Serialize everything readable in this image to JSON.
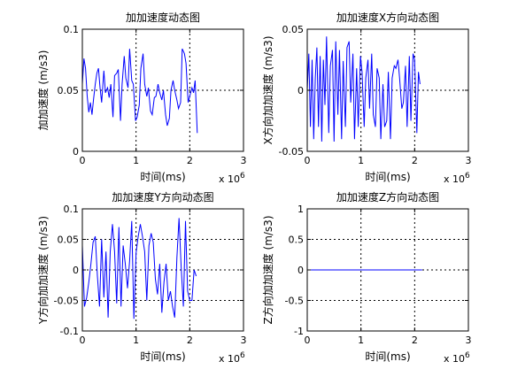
{
  "chart_data": [
    {
      "type": "line",
      "title": "加加速度动态图",
      "xlabel": "时间(ms)",
      "ylabel": "加加速度 (m/s3)",
      "x_multiplier": "x 10",
      "x_multiplier_exp": "6",
      "xlim": [
        0,
        3
      ],
      "ylim": [
        0,
        0.1
      ],
      "xticks": [
        0,
        1,
        2,
        3
      ],
      "xtick_labels": [
        "0",
        "1",
        "2",
        "3"
      ],
      "yticks": [
        0,
        0.05,
        0.1
      ],
      "ytick_labels": [
        "0",
        "0.05",
        "0.1"
      ],
      "grid": true,
      "color": "#0000ff",
      "x": [
        0,
        0.03,
        0.06,
        0.09,
        0.12,
        0.15,
        0.18,
        0.21,
        0.24,
        0.27,
        0.3,
        0.33,
        0.36,
        0.4,
        0.43,
        0.47,
        0.5,
        0.53,
        0.57,
        0.6,
        0.64,
        0.67,
        0.71,
        0.74,
        0.78,
        0.81,
        0.85,
        0.88,
        0.92,
        0.95,
        0.99,
        1.02,
        1.06,
        1.09,
        1.13,
        1.16,
        1.2,
        1.23,
        1.27,
        1.3,
        1.34,
        1.37,
        1.41,
        1.44,
        1.48,
        1.51,
        1.55,
        1.58,
        1.62,
        1.65,
        1.69,
        1.72,
        1.76,
        1.79,
        1.83,
        1.86,
        1.9,
        1.93,
        1.97,
        2.0,
        2.04,
        2.07,
        2.1,
        2.14
      ],
      "y": [
        0.055,
        0.076,
        0.068,
        0.045,
        0.032,
        0.04,
        0.03,
        0.043,
        0.055,
        0.064,
        0.068,
        0.052,
        0.04,
        0.066,
        0.048,
        0.052,
        0.044,
        0.055,
        0.028,
        0.062,
        0.064,
        0.067,
        0.025,
        0.055,
        0.078,
        0.06,
        0.052,
        0.084,
        0.058,
        0.055,
        0.025,
        0.028,
        0.038,
        0.068,
        0.08,
        0.055,
        0.045,
        0.052,
        0.033,
        0.03,
        0.044,
        0.045,
        0.055,
        0.048,
        0.042,
        0.05,
        0.03,
        0.021,
        0.027,
        0.05,
        0.058,
        0.05,
        0.042,
        0.035,
        0.04,
        0.084,
        0.08,
        0.072,
        0.04,
        0.045,
        0.052,
        0.048,
        0.058,
        0.015
      ]
    },
    {
      "type": "line",
      "title": "加加速度X方向动态图",
      "xlabel": "时间(ms)",
      "ylabel": "X方向加加速度 (m/s3)",
      "x_multiplier": "x 10",
      "x_multiplier_exp": "6",
      "xlim": [
        0,
        3
      ],
      "ylim": [
        -0.05,
        0.05
      ],
      "xticks": [
        0,
        1,
        2,
        3
      ],
      "xtick_labels": [
        "0",
        "1",
        "2",
        "3"
      ],
      "yticks": [
        -0.05,
        0,
        0.05
      ],
      "ytick_labels": [
        "-0.05",
        "0",
        "0.05"
      ],
      "grid": true,
      "color": "#0000ff",
      "x": [
        0,
        0.03,
        0.06,
        0.09,
        0.12,
        0.15,
        0.18,
        0.21,
        0.24,
        0.27,
        0.3,
        0.33,
        0.36,
        0.4,
        0.43,
        0.47,
        0.5,
        0.53,
        0.57,
        0.6,
        0.64,
        0.67,
        0.71,
        0.74,
        0.78,
        0.81,
        0.85,
        0.88,
        0.92,
        0.95,
        0.99,
        1.02,
        1.06,
        1.09,
        1.13,
        1.16,
        1.2,
        1.23,
        1.27,
        1.3,
        1.34,
        1.37,
        1.41,
        1.44,
        1.48,
        1.51,
        1.55,
        1.58,
        1.62,
        1.65,
        1.69,
        1.72,
        1.76,
        1.79,
        1.83,
        1.86,
        1.9,
        1.93,
        1.97,
        2.0,
        2.04,
        2.07,
        2.1
      ],
      "y": [
        0.0,
        0.03,
        -0.03,
        0.025,
        -0.04,
        0.01,
        0.035,
        -0.03,
        0.028,
        -0.042,
        0.025,
        -0.012,
        0.044,
        -0.035,
        0.02,
        0.033,
        -0.042,
        0.04,
        -0.02,
        0.033,
        -0.04,
        0.024,
        -0.03,
        0.035,
        0.04,
        -0.01,
        0.03,
        -0.04,
        0.018,
        -0.03,
        0.028,
        0.015,
        -0.03,
        0.01,
        0.025,
        -0.015,
        0.03,
        -0.02,
        -0.03,
        0.018,
        0.01,
        -0.04,
        0.005,
        -0.03,
        -0.025,
        0.015,
        -0.04,
        0.01,
        0.02,
        0.018,
        0.025,
        0.01,
        -0.015,
        -0.01,
        0.02,
        -0.03,
        0.028,
        -0.025,
        0.03,
        0.025,
        -0.035,
        0.015,
        0.005
      ]
    },
    {
      "type": "line",
      "title": "加加速度Y方向动态图",
      "xlabel": "时间(ms)",
      "ylabel": "Y方向加加速度 (m/s3)",
      "x_multiplier": "x 10",
      "x_multiplier_exp": "6",
      "xlim": [
        0,
        3
      ],
      "ylim": [
        -0.1,
        0.1
      ],
      "xticks": [
        0,
        1,
        2,
        3
      ],
      "xtick_labels": [
        "0",
        "1",
        "2",
        "3"
      ],
      "yticks": [
        -0.1,
        -0.05,
        0,
        0.05,
        0.1
      ],
      "ytick_labels": [
        "-0.1",
        "-0.05",
        "0",
        "0.05",
        "0.1"
      ],
      "grid": true,
      "color": "#0000ff",
      "x": [
        0,
        0.04,
        0.08,
        0.12,
        0.16,
        0.2,
        0.24,
        0.28,
        0.32,
        0.36,
        0.4,
        0.44,
        0.48,
        0.52,
        0.56,
        0.6,
        0.64,
        0.68,
        0.72,
        0.76,
        0.8,
        0.84,
        0.88,
        0.92,
        0.96,
        1.0,
        1.04,
        1.08,
        1.12,
        1.16,
        1.2,
        1.24,
        1.28,
        1.32,
        1.36,
        1.4,
        1.44,
        1.48,
        1.52,
        1.56,
        1.6,
        1.64,
        1.68,
        1.72,
        1.76,
        1.8,
        1.84,
        1.88,
        1.92,
        1.96,
        2.0,
        2.04,
        2.08,
        2.12
      ],
      "y": [
        0.04,
        -0.06,
        -0.045,
        -0.02,
        0.01,
        0.045,
        0.055,
        -0.01,
        -0.06,
        0.05,
        -0.045,
        0.03,
        -0.078,
        0.03,
        0.075,
        0.03,
        -0.055,
        0.07,
        -0.06,
        0.04,
        0.01,
        -0.03,
        0.015,
        0.08,
        -0.08,
        0.028,
        0.055,
        0.075,
        0.055,
        0.03,
        -0.05,
        0.04,
        0.06,
        0.045,
        -0.015,
        -0.04,
        0.01,
        -0.07,
        -0.02,
        0.01,
        -0.05,
        -0.035,
        -0.06,
        -0.078,
        0.02,
        0.085,
        0.005,
        -0.06,
        0.08,
        -0.035,
        -0.05,
        -0.05,
        0.0,
        -0.01
      ]
    },
    {
      "type": "line",
      "title": "加加速度Z方向动态图",
      "xlabel": "时间(ms)",
      "ylabel": "Z方向加加速度 (m/s3)",
      "x_multiplier": "x 10",
      "x_multiplier_exp": "6",
      "xlim": [
        0,
        3
      ],
      "ylim": [
        -1,
        1
      ],
      "xticks": [
        0,
        1,
        2,
        3
      ],
      "xtick_labels": [
        "0",
        "1",
        "2",
        "3"
      ],
      "yticks": [
        -1,
        -0.5,
        0,
        0.5,
        1
      ],
      "ytick_labels": [
        "-1",
        "-0.5",
        "0",
        "0.5",
        "1"
      ],
      "grid": true,
      "color": "#0000ff",
      "x": [
        0,
        0.5,
        1.0,
        1.5,
        2.14
      ],
      "y": [
        0,
        0,
        0,
        0,
        0
      ]
    }
  ]
}
